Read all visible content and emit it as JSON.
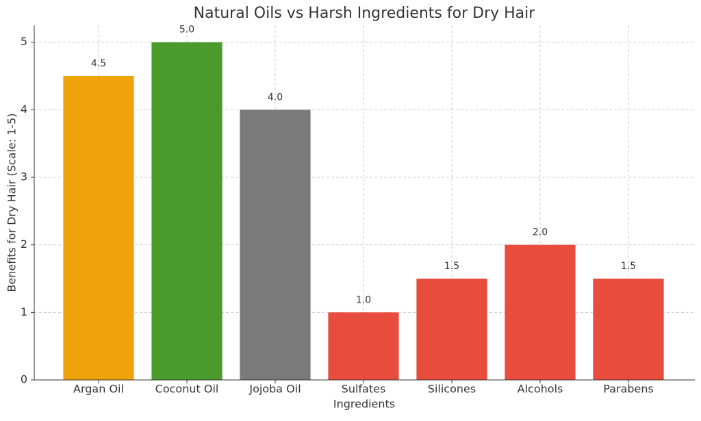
{
  "chart_data": {
    "type": "bar",
    "title": "Natural Oils vs Harsh Ingredients for Dry Hair",
    "xlabel": "Ingredients",
    "ylabel": "Benefits for Dry Hair (Scale: 1-5)",
    "categories": [
      "Argan Oil",
      "Coconut Oil",
      "Jojoba Oil",
      "Sulfates",
      "Silicones",
      "Alcohols",
      "Parabens"
    ],
    "values": [
      4.5,
      5,
      4,
      1,
      1.5,
      2,
      1.5
    ],
    "value_labels": [
      "4.5",
      "5.0",
      "4.0",
      "1.0",
      "1.5",
      "2.0",
      "1.5"
    ],
    "colors": [
      "#f0a30a",
      "#4b9b2c",
      "#7a7a7a",
      "#e74c3c",
      "#e74c3c",
      "#e74c3c",
      "#e74c3c"
    ],
    "ylim": [
      0,
      5.25
    ],
    "yticks": [
      0,
      1,
      2,
      3,
      4,
      5
    ],
    "grid": true
  }
}
